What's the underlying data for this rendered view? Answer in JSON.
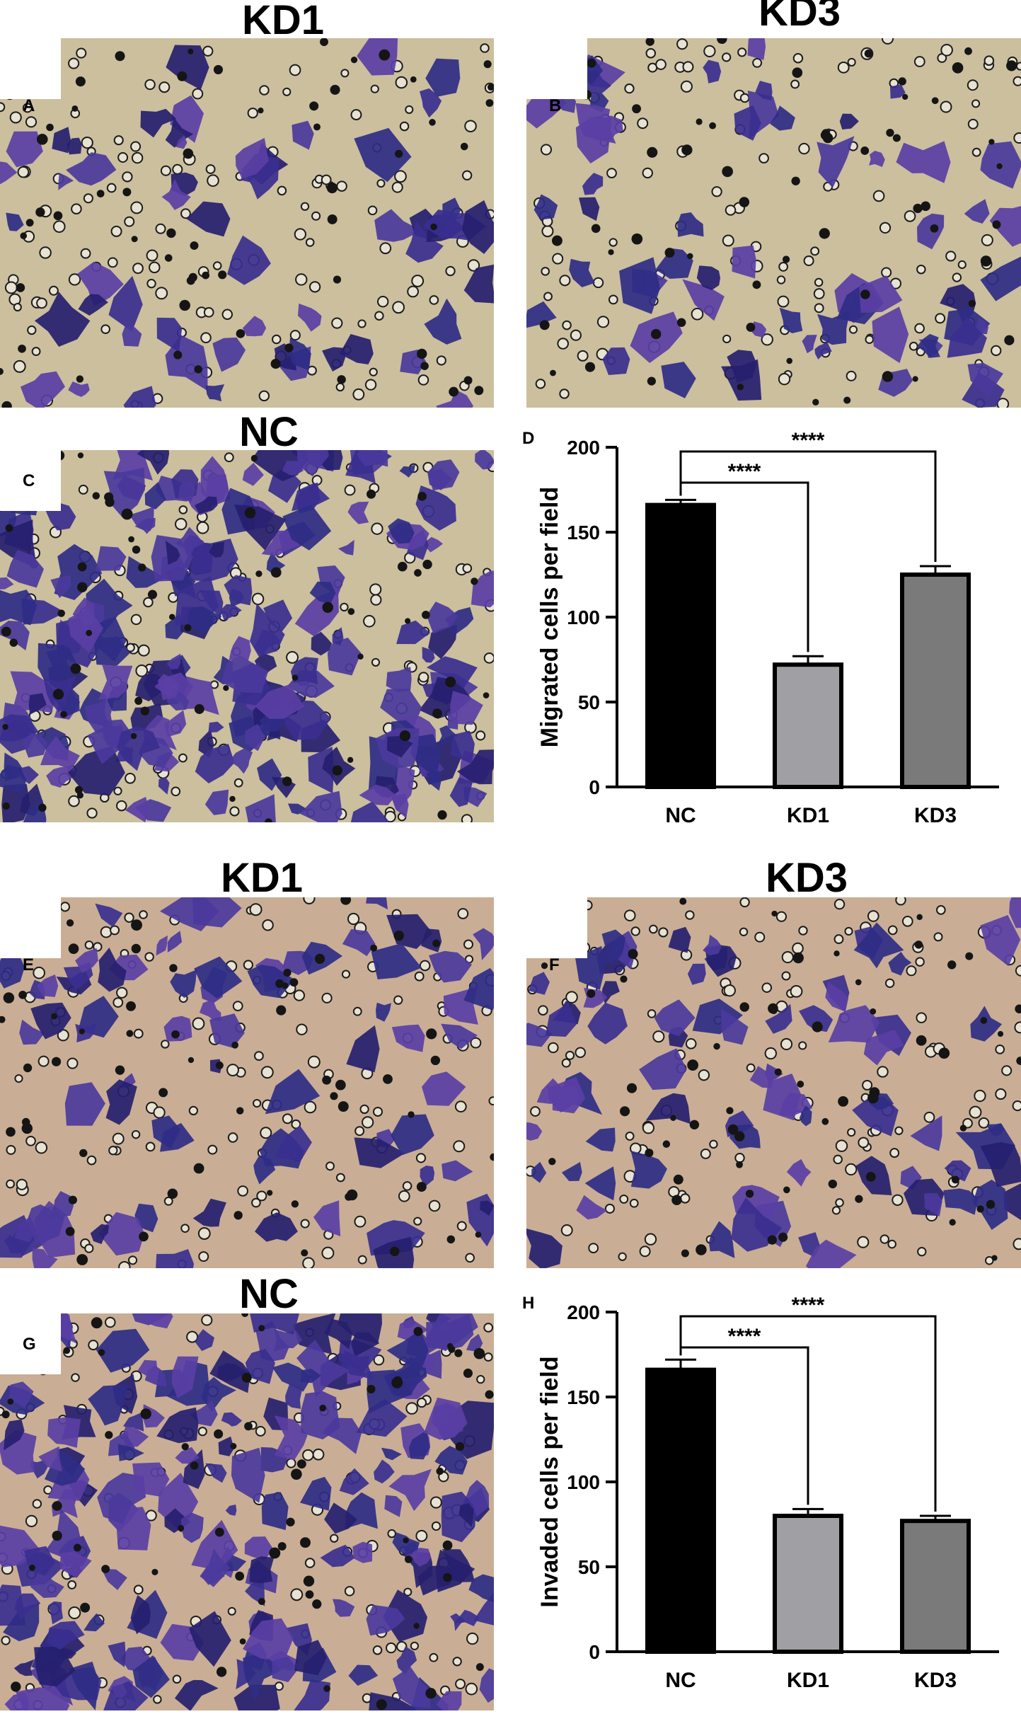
{
  "panels": {
    "A": {
      "letter": "A",
      "title": "KD1"
    },
    "B": {
      "letter": "B",
      "title": "KD3"
    },
    "C": {
      "letter": "C",
      "title": "NC"
    },
    "D": {
      "letter": "D"
    },
    "E": {
      "letter": "E",
      "title": "KD1"
    },
    "F": {
      "letter": "F",
      "title": "KD3"
    },
    "G": {
      "letter": "G",
      "title": "NC"
    },
    "H": {
      "letter": "H"
    }
  },
  "colors": {
    "photo_background_migration": "#cbbf9e",
    "photo_background_invasion": "#c9ae95",
    "cell_stain": "#3a2f8f",
    "bar_nc": "#000000",
    "bar_kd1": "#a0a0a4",
    "bar_kd3": "#7a7a7a"
  },
  "chart_data": [
    {
      "type": "bar",
      "panel": "D",
      "categories": [
        "NC",
        "KD1",
        "KD3"
      ],
      "values": [
        166,
        72,
        125
      ],
      "errors": [
        3,
        5,
        5
      ],
      "ylabel": "Migrated cells per field",
      "ylim": [
        0,
        200
      ],
      "yticks": [
        "0",
        "50",
        "100",
        "150",
        "200"
      ],
      "significance": [
        {
          "from": "NC",
          "to": "KD1",
          "label": "****"
        },
        {
          "from": "NC",
          "to": "KD3",
          "label": "****"
        }
      ]
    },
    {
      "type": "bar",
      "panel": "H",
      "categories": [
        "NC",
        "KD1",
        "KD3"
      ],
      "values": [
        166,
        80,
        77
      ],
      "errors": [
        6,
        4,
        3
      ],
      "ylabel": "Invaded cells per field",
      "ylim": [
        0,
        200
      ],
      "yticks": [
        "0",
        "50",
        "100",
        "150",
        "200"
      ],
      "significance": [
        {
          "from": "NC",
          "to": "KD1",
          "label": "****"
        },
        {
          "from": "NC",
          "to": "KD3",
          "label": "****"
        }
      ]
    }
  ]
}
